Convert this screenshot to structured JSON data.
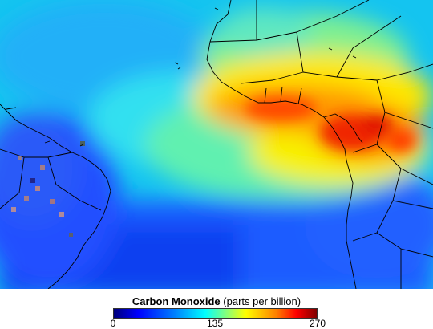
{
  "legend": {
    "title_bold": "Carbon Monoxide",
    "title_unit": "(parts per billion)",
    "ticks": [
      "0",
      "135",
      "270"
    ],
    "min": 0,
    "mid": 135,
    "max": 270
  },
  "colors": {
    "low": "#00007a",
    "mid": "#00ffff",
    "mid_high": "#ffff00",
    "high": "#ff0000",
    "max": "#800000",
    "coastline": "#000000"
  }
}
